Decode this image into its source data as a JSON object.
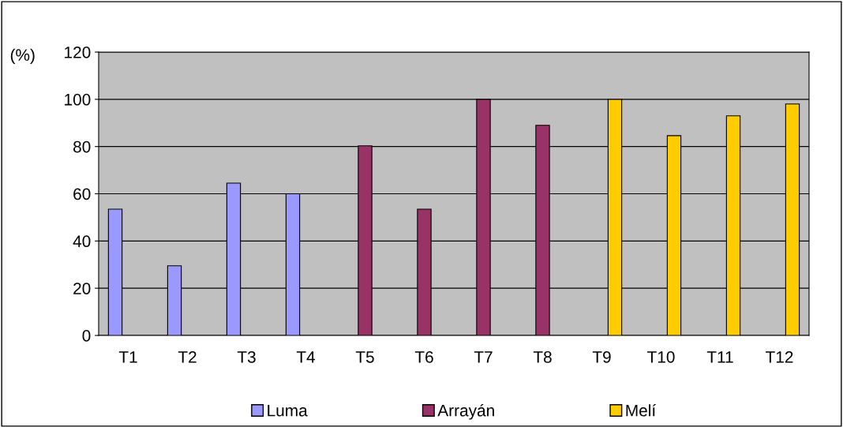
{
  "chart_data": {
    "type": "bar",
    "ylabel": "(%)",
    "categories": [
      "T1",
      "T2",
      "T3",
      "T4",
      "T5",
      "T6",
      "T7",
      "T8",
      "T9",
      "T10",
      "T11",
      "T12"
    ],
    "series": [
      {
        "name": "Luma",
        "color": "#9999ff",
        "values": [
          53.5,
          29.5,
          64.5,
          60,
          null,
          null,
          null,
          null,
          null,
          null,
          null,
          null
        ]
      },
      {
        "name": "Arrayán",
        "color": "#993366",
        "values": [
          null,
          null,
          null,
          null,
          80.3,
          53.5,
          100,
          89,
          null,
          null,
          null,
          null
        ]
      },
      {
        "name": "Melí",
        "color": "#ffcc00",
        "values": [
          null,
          null,
          null,
          null,
          null,
          null,
          null,
          null,
          100,
          84.6,
          93,
          98
        ]
      }
    ],
    "ylim": [
      0,
      120
    ],
    "yticks": [
      0,
      20,
      40,
      60,
      80,
      100,
      120
    ],
    "grid": "y",
    "legend": "bottom"
  }
}
